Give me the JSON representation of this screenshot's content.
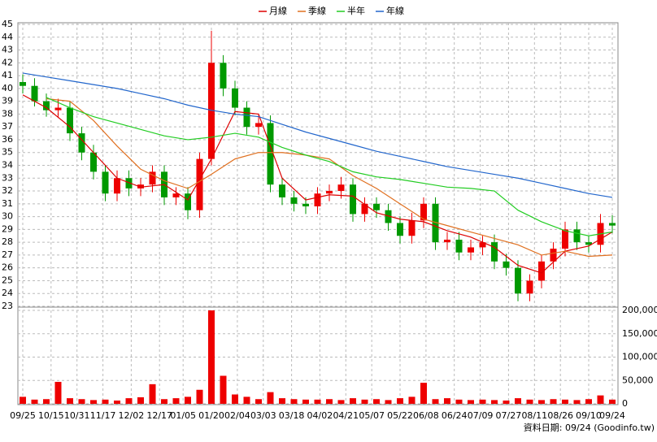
{
  "chart_data": {
    "type": "candlestick",
    "footer": "資料日期: 09/24 (Goodinfo.tw)",
    "xlim": [
      0,
      250
    ],
    "xticks": [
      {
        "value": 0,
        "label": "09/25"
      },
      {
        "value": 12,
        "label": "10/15"
      },
      {
        "value": 23,
        "label": "10/31"
      },
      {
        "value": 34,
        "label": "11/17"
      },
      {
        "value": 46,
        "label": "12/02"
      },
      {
        "value": 58,
        "label": "12/17"
      },
      {
        "value": 68,
        "label": "01/05"
      },
      {
        "value": 80,
        "label": "01/20"
      },
      {
        "value": 91,
        "label": "02/04"
      },
      {
        "value": 102,
        "label": "03/03"
      },
      {
        "value": 114,
        "label": "03/18"
      },
      {
        "value": 126,
        "label": "04/02"
      },
      {
        "value": 137,
        "label": "04/21"
      },
      {
        "value": 148,
        "label": "05/07"
      },
      {
        "value": 160,
        "label": "05/22"
      },
      {
        "value": 171,
        "label": "06/08"
      },
      {
        "value": 183,
        "label": "06/24"
      },
      {
        "value": 194,
        "label": "07/09"
      },
      {
        "value": 206,
        "label": "07/27"
      },
      {
        "value": 217,
        "label": "08/11"
      },
      {
        "value": 228,
        "label": "08/26"
      },
      {
        "value": 240,
        "label": "09/10"
      },
      {
        "value": 250,
        "label": "09/24"
      }
    ],
    "ylim": [
      23,
      45
    ],
    "yticks": [
      23,
      24,
      25,
      26,
      27,
      28,
      29,
      30,
      31,
      32,
      33,
      34,
      35,
      36,
      37,
      38,
      39,
      40,
      41,
      42,
      43,
      44,
      45
    ],
    "grid": true,
    "up_color": "#ee0000",
    "down_color": "#009900",
    "candles": {
      "x": [
        0,
        5,
        10,
        15,
        20,
        25,
        30,
        35,
        40,
        45,
        50,
        55,
        60,
        65,
        70,
        75,
        80,
        85,
        90,
        95,
        100,
        105,
        110,
        115,
        120,
        125,
        130,
        135,
        140,
        145,
        150,
        155,
        160,
        165,
        170,
        175,
        180,
        185,
        190,
        195,
        200,
        205,
        210,
        215,
        220,
        225,
        230,
        235,
        240,
        245,
        250
      ],
      "open": [
        40.5,
        40.2,
        39,
        38.3,
        38.5,
        36.5,
        35,
        33.5,
        31.8,
        33,
        32.2,
        32.5,
        33.5,
        31.5,
        31.8,
        30.5,
        34.5,
        42,
        40,
        38.5,
        37,
        37.3,
        32.5,
        31.5,
        31,
        30.8,
        31.8,
        32,
        32.5,
        30.2,
        31,
        30.5,
        29.5,
        28.5,
        29.7,
        31,
        28,
        28.2,
        27.2,
        27.6,
        28,
        26.5,
        26,
        24,
        25,
        26.5,
        27.5,
        29,
        28,
        27.8,
        29.5
      ],
      "high": [
        41.1,
        40.8,
        39.6,
        39.2,
        39,
        37,
        35.6,
        34,
        33.6,
        33.6,
        33,
        34,
        34,
        32.3,
        32.3,
        35,
        44.5,
        42.6,
        40.6,
        39,
        37.9,
        37.9,
        33,
        32,
        31.5,
        32.3,
        32.5,
        33.1,
        33,
        31.5,
        31.5,
        31,
        30,
        30.3,
        31.5,
        31.5,
        28.8,
        28.8,
        28.2,
        28.5,
        28.6,
        27.1,
        26.6,
        25.5,
        27,
        28,
        29.6,
        29.6,
        28.5,
        30.2,
        30.1
      ],
      "low": [
        39.6,
        38.6,
        37.8,
        37.7,
        35.9,
        34.4,
        32.9,
        31.2,
        31.2,
        31.6,
        31.6,
        31.9,
        30.9,
        30.9,
        29.8,
        29.9,
        34,
        39.4,
        37.9,
        36.4,
        36.4,
        31.9,
        30.9,
        30.4,
        30.2,
        30.2,
        31.2,
        31.4,
        29.6,
        29.6,
        29.9,
        28.9,
        27.9,
        27.9,
        29.1,
        27.4,
        27.4,
        26.6,
        26.6,
        27,
        25.9,
        25.4,
        23.4,
        23.4,
        24.4,
        25.9,
        26.9,
        27.4,
        27.2,
        27.2,
        28.7
      ],
      "close": [
        40.2,
        39,
        38.3,
        38.5,
        36.5,
        35,
        33.5,
        31.8,
        33,
        32.2,
        32.5,
        33.5,
        31.5,
        31.8,
        30.5,
        34.5,
        42,
        40,
        38.5,
        37,
        37.3,
        32.5,
        31.5,
        31,
        30.8,
        31.8,
        32,
        32.5,
        30.2,
        31,
        30.5,
        29.5,
        28.5,
        29.7,
        31,
        28,
        28.2,
        27.2,
        27.6,
        28,
        26.5,
        26,
        24,
        25,
        26.5,
        27.5,
        29,
        28,
        27.8,
        29.5,
        29.3
      ]
    },
    "series": [
      {
        "name": "月線",
        "color": "#dd0000",
        "x": [
          0,
          10,
          20,
          30,
          40,
          50,
          60,
          70,
          80,
          90,
          100,
          110,
          120,
          130,
          140,
          150,
          160,
          170,
          180,
          190,
          200,
          210,
          220,
          230,
          240,
          250
        ],
        "values": [
          39.5,
          38.5,
          37,
          35,
          33,
          32.3,
          32.5,
          31.3,
          34.5,
          38.2,
          38,
          33,
          31.3,
          31.7,
          31.6,
          30.3,
          29.8,
          29.6,
          28.9,
          28.4,
          27.6,
          26.2,
          25.6,
          27.3,
          27.7,
          28.8
        ]
      },
      {
        "name": "季線",
        "color": "#e07020",
        "x": [
          10,
          20,
          30,
          40,
          50,
          60,
          70,
          80,
          90,
          100,
          110,
          120,
          130,
          140,
          150,
          160,
          170,
          180,
          190,
          200,
          210,
          220,
          230,
          240,
          250
        ],
        "values": [
          39.2,
          39,
          37.5,
          35.5,
          33.7,
          32.8,
          32.2,
          33.3,
          34.5,
          35,
          35,
          34.8,
          34.5,
          33.2,
          32.2,
          31,
          29.8,
          29.3,
          28.8,
          28.3,
          27.8,
          27,
          27.3,
          26.9,
          27
        ]
      },
      {
        "name": "半年",
        "color": "#22cc22",
        "x": [
          10,
          20,
          30,
          40,
          50,
          60,
          70,
          80,
          90,
          100,
          110,
          120,
          130,
          140,
          150,
          160,
          170,
          180,
          190,
          200,
          210,
          220,
          230,
          240,
          250
        ],
        "values": [
          39.3,
          38.5,
          37.8,
          37.3,
          36.8,
          36.3,
          36,
          36.2,
          36.5,
          36.2,
          35.4,
          34.8,
          34.3,
          33.5,
          33.1,
          32.9,
          32.6,
          32.3,
          32.2,
          32,
          30.5,
          29.6,
          28.9,
          28.5,
          28.8
        ]
      },
      {
        "name": "年線",
        "color": "#2266cc",
        "x": [
          0,
          10,
          20,
          30,
          40,
          50,
          60,
          70,
          80,
          90,
          100,
          110,
          120,
          130,
          140,
          150,
          160,
          170,
          180,
          190,
          200,
          210,
          220,
          230,
          240,
          250
        ],
        "values": [
          41.2,
          40.9,
          40.6,
          40.3,
          40,
          39.6,
          39.2,
          38.7,
          38.3,
          38,
          37.8,
          37.2,
          36.6,
          36.1,
          35.6,
          35.1,
          34.7,
          34.3,
          33.9,
          33.6,
          33.3,
          33,
          32.6,
          32.2,
          31.8,
          31.5
        ]
      }
    ],
    "volume": {
      "color": "#ee0000",
      "ylim": [
        0,
        207000
      ],
      "yticks": [
        0,
        {
          "value": 50000,
          "label": "50,000"
        },
        {
          "value": 100000,
          "label": "100,000"
        },
        {
          "value": 150000,
          "label": "150,000"
        },
        {
          "value": 200000,
          "label": "200,000"
        }
      ],
      "values": [
        15000,
        9000,
        10000,
        47000,
        12000,
        10000,
        8000,
        9000,
        7000,
        12000,
        14000,
        42000,
        10000,
        12000,
        15000,
        30000,
        200000,
        60000,
        20000,
        15000,
        10000,
        25000,
        12000,
        10000,
        9000,
        9000,
        10000,
        8000,
        12000,
        9000,
        10000,
        8000,
        12000,
        15000,
        45000,
        10000,
        12000,
        9000,
        8000,
        9000,
        8000,
        7000,
        12000,
        9000,
        8000,
        10000,
        9000,
        8000,
        10000,
        18000,
        9000
      ]
    }
  }
}
